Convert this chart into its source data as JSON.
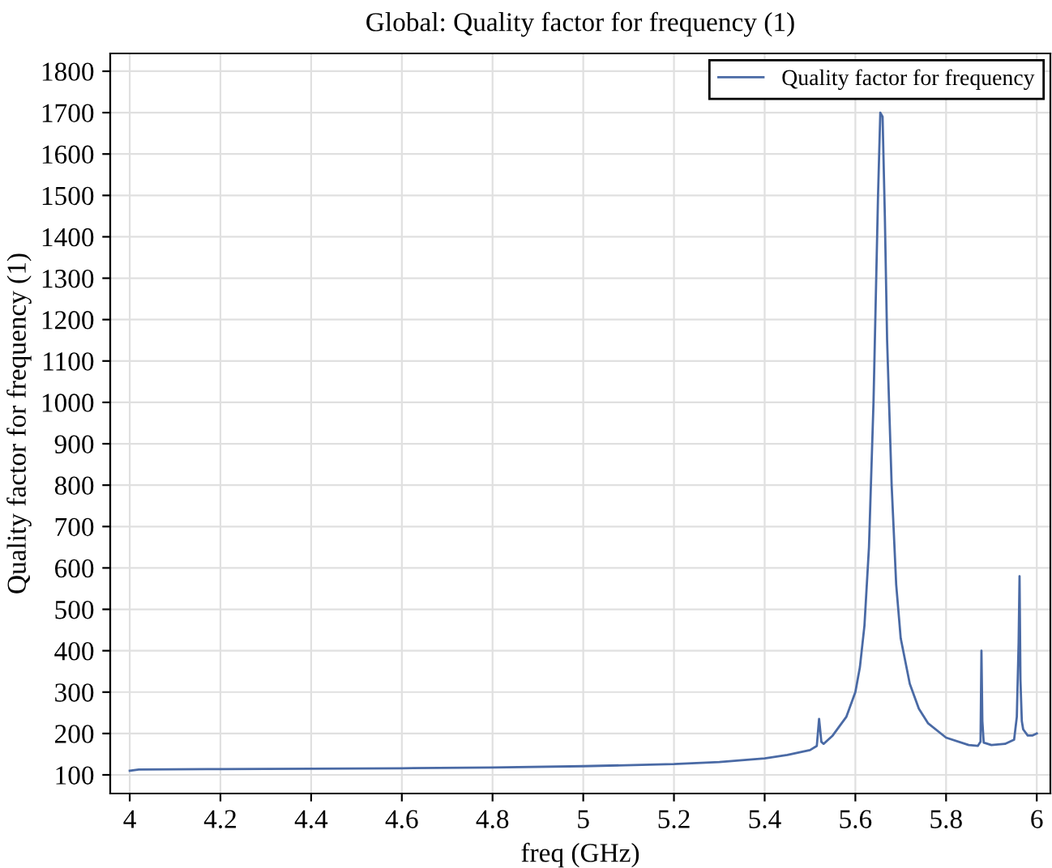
{
  "chart_data": {
    "type": "line",
    "title": "Global: Quality factor for frequency (1)",
    "xlabel": "freq (GHz)",
    "ylabel": "Quality factor for frequency (1)",
    "xlim": [
      3.957,
      6.03
    ],
    "ylim": [
      55,
      1843
    ],
    "xticks": [
      4,
      4.2,
      4.4,
      4.6,
      4.8,
      5,
      5.2,
      5.4,
      5.6,
      5.8,
      6
    ],
    "yticks": [
      100,
      200,
      300,
      400,
      500,
      600,
      700,
      800,
      900,
      1000,
      1100,
      1200,
      1300,
      1400,
      1500,
      1600,
      1700,
      1800
    ],
    "grid": true,
    "legend": "top right",
    "series": [
      {
        "name": "Quality factor for frequency",
        "color": "#4a6aa5",
        "x": [
          4.0,
          4.02,
          4.2,
          4.4,
          4.6,
          4.8,
          5.0,
          5.2,
          5.3,
          5.4,
          5.45,
          5.5,
          5.515,
          5.52,
          5.525,
          5.53,
          5.55,
          5.58,
          5.6,
          5.61,
          5.62,
          5.63,
          5.64,
          5.65,
          5.655,
          5.66,
          5.665,
          5.67,
          5.68,
          5.69,
          5.7,
          5.72,
          5.74,
          5.76,
          5.8,
          5.85,
          5.87,
          5.876,
          5.878,
          5.88,
          5.883,
          5.9,
          5.93,
          5.95,
          5.956,
          5.96,
          5.962,
          5.964,
          5.967,
          5.97,
          5.98,
          5.99,
          6.0
        ],
        "values": [
          110,
          113,
          114,
          115,
          116,
          118,
          121,
          126,
          131,
          140,
          148,
          160,
          170,
          235,
          180,
          175,
          195,
          240,
          300,
          360,
          460,
          650,
          1000,
          1500,
          1700,
          1690,
          1450,
          1150,
          800,
          560,
          430,
          320,
          260,
          225,
          190,
          172,
          170,
          180,
          400,
          230,
          178,
          172,
          175,
          185,
          240,
          420,
          580,
          330,
          230,
          210,
          195,
          195,
          200
        ]
      }
    ]
  }
}
